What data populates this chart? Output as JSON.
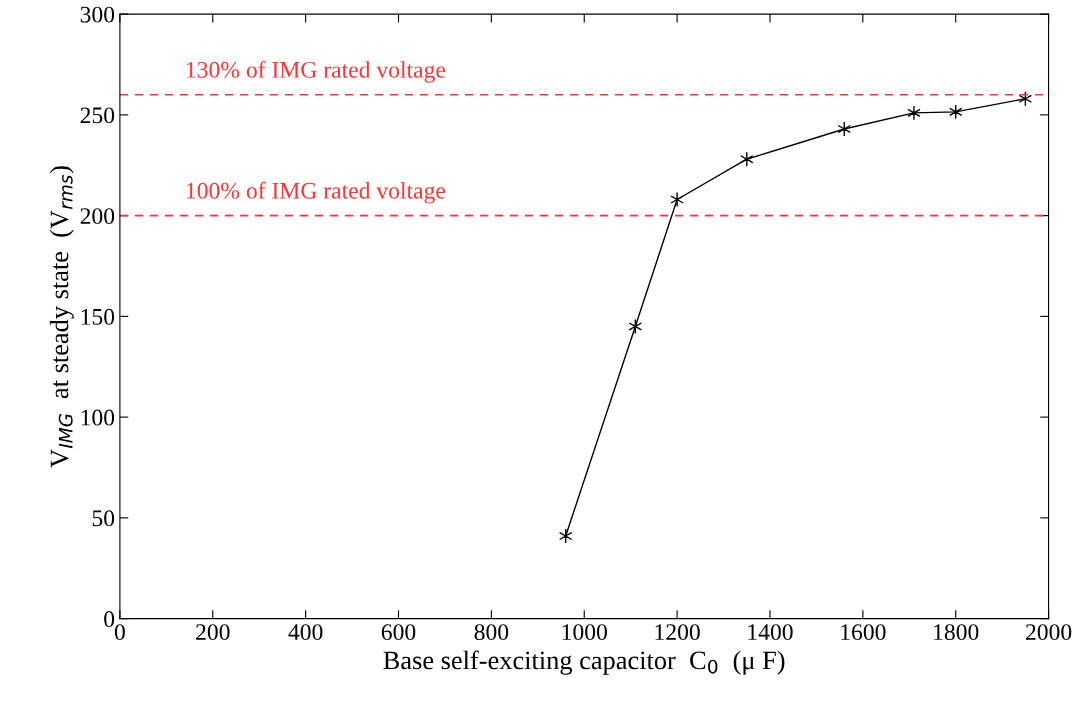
{
  "chart_data": {
    "type": "line",
    "x": [
      960,
      1110,
      1200,
      1350,
      1560,
      1710,
      1800,
      1950
    ],
    "series": [
      {
        "color": "#000000",
        "values": [
          41,
          145,
          208,
          228,
          243,
          251,
          251.5,
          258
        ]
      }
    ],
    "xlabel": "Base self-exciting capacitor  C$_{0}$  (μ F)",
    "ylabel": "V$_{IMG}$  at steady state  (V$_{rms}$)",
    "xlim": [
      0,
      2000
    ],
    "xticks": [
      0,
      200,
      400,
      600,
      800,
      1000,
      1200,
      1400,
      1600,
      1800,
      2000
    ],
    "ylim": [
      0,
      300
    ],
    "yticks": [
      0,
      50,
      100,
      150,
      200,
      250,
      300
    ],
    "ref_lines": [
      {
        "axis": "y",
        "value": 260,
        "label": "130% of IMG rated voltage",
        "color": "#ff3333",
        "line_style": "dashed"
      },
      {
        "axis": "y",
        "value": 200,
        "label": "100% of IMG rated voltage",
        "color": "#ff3333",
        "line_style": "dashed"
      }
    ],
    "marker": "cross",
    "line_style": "solid",
    "grid": false,
    "legend": false
  }
}
